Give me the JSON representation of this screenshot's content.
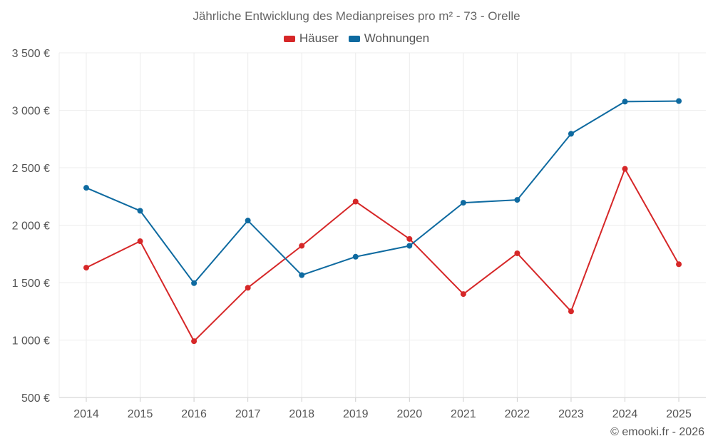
{
  "chart_data": {
    "type": "line",
    "title": "Jährliche Entwicklung des Medianpreises pro m² - 73 - Orelle",
    "x": [
      "2014",
      "2015",
      "2016",
      "2017",
      "2018",
      "2019",
      "2020",
      "2021",
      "2022",
      "2023",
      "2024",
      "2025"
    ],
    "series": [
      {
        "name": "Häuser",
        "color": "#d62728",
        "values": [
          1630,
          1860,
          990,
          1455,
          1820,
          2205,
          1880,
          1400,
          1755,
          1250,
          2490,
          1660
        ]
      },
      {
        "name": "Wohnungen",
        "color": "#0e6aa0",
        "values": [
          2325,
          2125,
          1495,
          2040,
          1565,
          1725,
          1820,
          2195,
          2220,
          2795,
          3075,
          3080
        ]
      }
    ],
    "yticks": [
      "500 €",
      "1 000 €",
      "1 500 €",
      "2 000 €",
      "2 500 €",
      "3 000 €",
      "3 500 €"
    ],
    "ytick_values": [
      500,
      1000,
      1500,
      2000,
      2500,
      3000,
      3500
    ],
    "ylim": [
      500,
      3500
    ],
    "grid": true,
    "legend_position": "top-center"
  },
  "credit": "© emooki.fr - 2026"
}
